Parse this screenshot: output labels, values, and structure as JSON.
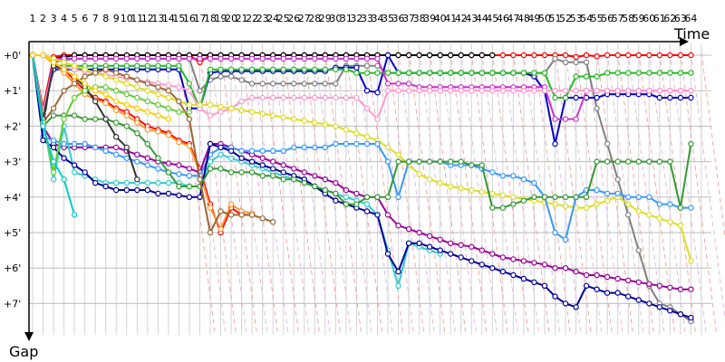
{
  "chart_data": {
    "type": "line",
    "xlabel": "Time",
    "ylabel": "Gap",
    "x_ticks": [
      1,
      2,
      3,
      4,
      5,
      6,
      7,
      8,
      9,
      10,
      11,
      12,
      13,
      14,
      15,
      16,
      17,
      18,
      19,
      20,
      21,
      22,
      23,
      24,
      25,
      26,
      27,
      28,
      29,
      30,
      31,
      32,
      33,
      34,
      35,
      36,
      37,
      38,
      39,
      40,
      41,
      42,
      43,
      44,
      45,
      46,
      47,
      48,
      49,
      50,
      51,
      52,
      53,
      54,
      55,
      56,
      57,
      58,
      59,
      60,
      61,
      62,
      63,
      64
    ],
    "y_ticks": [
      "+0'",
      "+1'",
      "+2'",
      "+3'",
      "+4'",
      "+5'",
      "+6'",
      "+7'"
    ],
    "xlim": [
      1,
      67
    ],
    "ylim": [
      0,
      7.8
    ],
    "grid": true,
    "series": [
      {
        "color": "#ff0000",
        "values": [
          0,
          1.5,
          0.05,
          0,
          0,
          0,
          0,
          0,
          0,
          0,
          0,
          0,
          0,
          0,
          0,
          0,
          0.2,
          0,
          0,
          0,
          0,
          0,
          0,
          0,
          0,
          0,
          0,
          0,
          0,
          0,
          0,
          0,
          0,
          0,
          0,
          0,
          0,
          0,
          0,
          0,
          0,
          0,
          0,
          0,
          0,
          0,
          0,
          0,
          0,
          0,
          0,
          0,
          0.05,
          0,
          0.03,
          0,
          0,
          0,
          0,
          0,
          0,
          0,
          0,
          0
        ]
      },
      {
        "color": "#000000",
        "values": [
          0,
          2.0,
          0.1,
          0.05,
          0,
          0,
          0,
          0,
          0,
          0,
          0,
          0,
          0,
          0,
          0,
          0,
          0,
          0,
          0,
          0,
          0,
          0,
          0,
          0,
          0,
          0,
          0,
          0,
          0,
          0,
          0,
          0,
          0,
          0,
          0,
          0,
          0,
          0,
          0,
          0,
          0,
          0,
          0,
          0,
          0
        ]
      },
      {
        "color": "#808080",
        "values": [
          0,
          1.6,
          0.2,
          0.15,
          0.1,
          0.1,
          0.1,
          0.1,
          0.1,
          0.1,
          0.1,
          0.1,
          0.1,
          0.1,
          0.1,
          0.1,
          1.0,
          0.7,
          0.6,
          0.6,
          0.7,
          0.8,
          0.8,
          0.8,
          0.8,
          0.8,
          0.8,
          0.8,
          0.8,
          0.8,
          0.3,
          0.3,
          0.3,
          0.3,
          0.5,
          0.5,
          0.5,
          0.5,
          0.5,
          0.5,
          0.5,
          0.5,
          0.5,
          0.5,
          0.5,
          0.5,
          0.5,
          0.5,
          0.5,
          0.5,
          0.1,
          0.2,
          0.2,
          0.2,
          1.5,
          2.5,
          3.5,
          4.5,
          5.5,
          6.5,
          7.0,
          7.1,
          7.3,
          7.5
        ]
      },
      {
        "color": "#0000cc",
        "values": [
          0,
          1.6,
          0.4,
          0.4,
          0.4,
          0.4,
          0.4,
          0.4,
          0.4,
          0.4,
          0.4,
          0.4,
          0.4,
          0.4,
          0.4,
          1.5,
          1.5,
          0.5,
          0.45,
          0.45,
          0.45,
          0.45,
          0.45,
          0.45,
          0.45,
          0.45,
          0.45,
          0.45,
          0.45,
          0.35,
          0.35,
          0.35,
          1.0,
          1.05,
          0.0,
          0.5,
          0.5,
          0.5,
          0.5,
          0.5,
          0.5,
          0.5,
          0.5,
          0.5,
          0.5,
          0.5,
          0.5,
          0.5,
          0.6,
          1.0,
          2.5,
          1.2,
          1.2,
          1.2,
          1.2,
          1.1,
          1.1,
          1.1,
          1.1,
          1.1,
          1.2,
          1.2,
          1.2,
          1.2
        ]
      },
      {
        "color": "#22bb22",
        "values": [
          0,
          1.8,
          0.3,
          0.3,
          0.3,
          0.3,
          0.3,
          0.3,
          0.3,
          0.3,
          0.3,
          0.3,
          0.3,
          0.3,
          0.3,
          0.8,
          1.5,
          0.4,
          0.4,
          0.4,
          0.4,
          0.4,
          0.4,
          0.4,
          0.4,
          0.4,
          0.4,
          0.4,
          0.4,
          0.4,
          0.4,
          0.5,
          0.5,
          0.5,
          0.5,
          0.5,
          0.5,
          0.5,
          0.5,
          0.5,
          0.5,
          0.5,
          0.5,
          0.5,
          0.5,
          0.5,
          0.5,
          0.5,
          0.5,
          0.5,
          1.2,
          1.2,
          0.6,
          0.6,
          0.6,
          0.5,
          0.5,
          0.5,
          0.5,
          0.5,
          0.5,
          0.5,
          0.5,
          0.5
        ]
      },
      {
        "color": "#cc33cc",
        "values": [
          0,
          1.7,
          0.1,
          0.1,
          0.1,
          0.1,
          0.1,
          0.1,
          0.1,
          0.1,
          0.1,
          0.1,
          0.1,
          0.1,
          0.1,
          0.1,
          0.1,
          0.1,
          0.1,
          0.1,
          0.1,
          0.1,
          0.1,
          0.1,
          0.1,
          0.1,
          0.1,
          0.1,
          0.1,
          0.1,
          0.1,
          0.1,
          0.1,
          0.1,
          0.8,
          0.8,
          0.8,
          0.9,
          0.9,
          0.9,
          0.9,
          0.9,
          0.9,
          0.9,
          0.9,
          0.9,
          0.9,
          0.9,
          0.9,
          0.9,
          1.8,
          1.8,
          1.8,
          1.0,
          1.0,
          1.0,
          1.0,
          1.0,
          1.0,
          1.0,
          1.0,
          1.0,
          1.0,
          1.0
        ]
      },
      {
        "color": "#ff99cc",
        "values": [
          0,
          1.6,
          0.3,
          0.35,
          0.4,
          0.45,
          0.5,
          0.55,
          0.6,
          0.65,
          0.7,
          0.75,
          0.8,
          0.85,
          0.9,
          1.0,
          1.5,
          1.7,
          1.6,
          1.5,
          1.3,
          1.2,
          1.2,
          1.2,
          1.2,
          1.2,
          1.2,
          1.2,
          1.2,
          1.2,
          1.2,
          1.2,
          1.5,
          1.8,
          1.0,
          1.0,
          1.0,
          1.0,
          1.0,
          1.0,
          1.0,
          1.0,
          1.0,
          1.0,
          1.0,
          1.0,
          1.0,
          1.0,
          1.0,
          1.0,
          1.0,
          1.0,
          1.0,
          1.0,
          1.0,
          1.0,
          1.0,
          1.0,
          1.0,
          1.0,
          1.0,
          1.0,
          1.0,
          1.0
        ]
      },
      {
        "color": "#dddd22",
        "values": [
          0,
          0,
          0.1,
          0.2,
          0.3,
          0.4,
          0.5,
          0.6,
          0.7,
          0.8,
          0.9,
          1.0,
          1.1,
          1.2,
          1.3,
          1.4,
          1.4,
          1.4,
          1.45,
          1.5,
          1.55,
          1.6,
          1.65,
          1.7,
          1.75,
          1.8,
          1.85,
          1.9,
          1.95,
          2.0,
          2.1,
          2.2,
          2.3,
          2.4,
          2.6,
          2.8,
          3.1,
          3.35,
          3.5,
          3.6,
          3.7,
          3.75,
          3.8,
          3.85,
          3.9,
          3.95,
          4.0,
          4.05,
          4.1,
          4.15,
          4.2,
          4.25,
          4.3,
          4.3,
          4.2,
          4.1,
          4.0,
          4.2,
          4.4,
          4.5,
          4.6,
          4.7,
          4.8,
          5.8
        ]
      },
      {
        "color": "#ff0000",
        "values": [
          0,
          0,
          0.2,
          0.4,
          0.7,
          1.0,
          1.2,
          1.3,
          1.5,
          1.6,
          1.8,
          2.0,
          2.1,
          2.2,
          2.4,
          2.5,
          3.2,
          4.2,
          5.0,
          4.3,
          4.5,
          4.5
        ]
      },
      {
        "color": "#ff9933",
        "values": [
          0,
          0,
          0.25,
          0.5,
          0.8,
          1.1,
          1.25,
          1.35,
          1.55,
          1.7,
          1.9,
          2.1,
          2.15,
          2.25,
          2.45,
          2.55,
          3.3,
          4.3,
          4.9,
          4.2,
          4.4,
          4.45
        ]
      },
      {
        "color": "#990099",
        "values": [
          0,
          2.0,
          2.5,
          2.6,
          2.6,
          2.6,
          2.6,
          2.6,
          2.6,
          2.7,
          2.8,
          2.9,
          3.0,
          3.05,
          3.1,
          3.2,
          3.3,
          2.5,
          2.5,
          2.6,
          2.7,
          2.8,
          2.9,
          3.0,
          3.1,
          3.2,
          3.3,
          3.4,
          3.5,
          3.6,
          3.8,
          3.9,
          4.0,
          4.0,
          4.5,
          4.8,
          4.9,
          5.0,
          5.1,
          5.2,
          5.3,
          5.35,
          5.4,
          5.5,
          5.6,
          5.7,
          5.75,
          5.8,
          5.85,
          5.9,
          6.0,
          6.0,
          6.1,
          6.2,
          6.2,
          6.25,
          6.3,
          6.35,
          6.4,
          6.45,
          6.5,
          6.55,
          6.6,
          6.6
        ]
      },
      {
        "color": "#3399ff",
        "values": [
          0,
          2.3,
          2.4,
          2.5,
          2.5,
          2.5,
          2.6,
          2.7,
          2.8,
          2.9,
          3.0,
          3.1,
          3.2,
          3.3,
          3.35,
          3.4,
          3.4,
          2.8,
          2.6,
          2.6,
          2.7,
          2.7,
          2.7,
          2.7,
          2.7,
          2.6,
          2.6,
          2.6,
          2.6,
          2.5,
          2.5,
          2.5,
          2.5,
          2.5,
          3.0,
          4.0,
          3.0,
          3.0,
          3.0,
          3.0,
          3.1,
          3.1,
          3.1,
          3.2,
          3.3,
          3.4,
          3.4,
          3.5,
          3.6,
          4.0,
          5.0,
          5.2,
          4.0,
          3.8,
          3.8,
          3.9,
          3.9,
          4.0,
          4.0,
          4.0,
          4.2,
          4.2,
          4.3,
          4.3
        ]
      },
      {
        "color": "#33cccc",
        "values": [
          0,
          1.8,
          3.5,
          2.0,
          3.3,
          3.4,
          3.5,
          3.6,
          3.6,
          3.6,
          3.6,
          3.6,
          3.6,
          3.6,
          3.6,
          3.7,
          3.7,
          3.0,
          2.8,
          2.9,
          3.0,
          3.1,
          3.2,
          3.3,
          3.4,
          3.5,
          3.6,
          3.7,
          3.8,
          3.9,
          4.0,
          4.1,
          4.2,
          4.5,
          5.5,
          6.5,
          5.3,
          5.4,
          5.5,
          5.6
        ]
      },
      {
        "color": "#000099",
        "values": [
          0,
          2.4,
          2.6,
          2.9,
          3.1,
          3.3,
          3.6,
          3.7,
          3.8,
          3.8,
          3.8,
          3.8,
          3.9,
          3.9,
          3.95,
          4.0,
          4.0,
          2.5,
          2.6,
          2.7,
          2.9,
          3.0,
          3.1,
          3.2,
          3.3,
          3.4,
          3.5,
          3.7,
          3.9,
          4.1,
          4.2,
          4.3,
          4.4,
          4.5,
          5.6,
          6.1,
          5.3,
          5.3,
          5.4,
          5.5,
          5.6,
          5.7,
          5.8,
          5.9,
          6.0,
          6.1,
          6.2,
          6.3,
          6.4,
          6.5,
          6.8,
          7.0,
          7.1,
          6.5,
          6.6,
          6.7,
          6.7,
          6.8,
          6.9,
          7.0,
          7.1,
          7.2,
          7.3,
          7.4
        ]
      },
      {
        "color": "#339933",
        "values": [
          0,
          2.0,
          1.7,
          1.7,
          1.7,
          1.8,
          1.8,
          1.8,
          1.9,
          2.0,
          2.2,
          2.5,
          2.9,
          3.3,
          3.7,
          3.7,
          3.7,
          3.2,
          3.2,
          3.3,
          3.3,
          3.3,
          3.4,
          3.4,
          3.5,
          3.5,
          3.6,
          3.7,
          3.8,
          3.9,
          4.2,
          4.2,
          4.0,
          4.0,
          4.0,
          3.0,
          3.0,
          3.0,
          3.0,
          3.0,
          3.0,
          3.0,
          3.1,
          3.1,
          4.3,
          4.3,
          4.2,
          4.1,
          4.0,
          4.0,
          4.0,
          4.0,
          4.0,
          4.0,
          3.0,
          3.0,
          3.0,
          3.0,
          3.0,
          3.0,
          3.0,
          3.0,
          4.3,
          2.5
        ]
      },
      {
        "color": "#996633",
        "values": [
          0,
          1.9,
          1.5,
          1.0,
          0.8,
          0.6,
          0.5,
          0.4,
          0.5,
          0.6,
          0.7,
          0.8,
          0.9,
          1.0,
          1.3,
          1.8,
          3.5,
          5.0,
          4.4,
          4.5,
          4.5,
          4.5,
          4.6,
          4.7
        ]
      },
      {
        "color": "#333333",
        "values": [
          0,
          1.8,
          0.3,
          0.4,
          0.6,
          0.9,
          1.3,
          1.8,
          2.3,
          2.6,
          3.5
        ]
      },
      {
        "color": "#66cc33",
        "values": [
          0,
          1.9,
          3.3,
          1.8,
          1.2,
          1.0,
          0.9,
          0.9,
          1.0,
          1.1,
          1.2,
          1.3,
          1.4,
          1.5,
          1.6,
          1.6
        ]
      },
      {
        "color": "#00cccc",
        "values": [
          0,
          2.0,
          3.0,
          3.5,
          4.5
        ]
      },
      {
        "color": "#ffcc00",
        "values": [
          0,
          0,
          0.2,
          0.4,
          0.6,
          0.8,
          1.0,
          1.1,
          1.3,
          1.4,
          1.5,
          1.6,
          1.7,
          1.8
        ]
      }
    ]
  }
}
